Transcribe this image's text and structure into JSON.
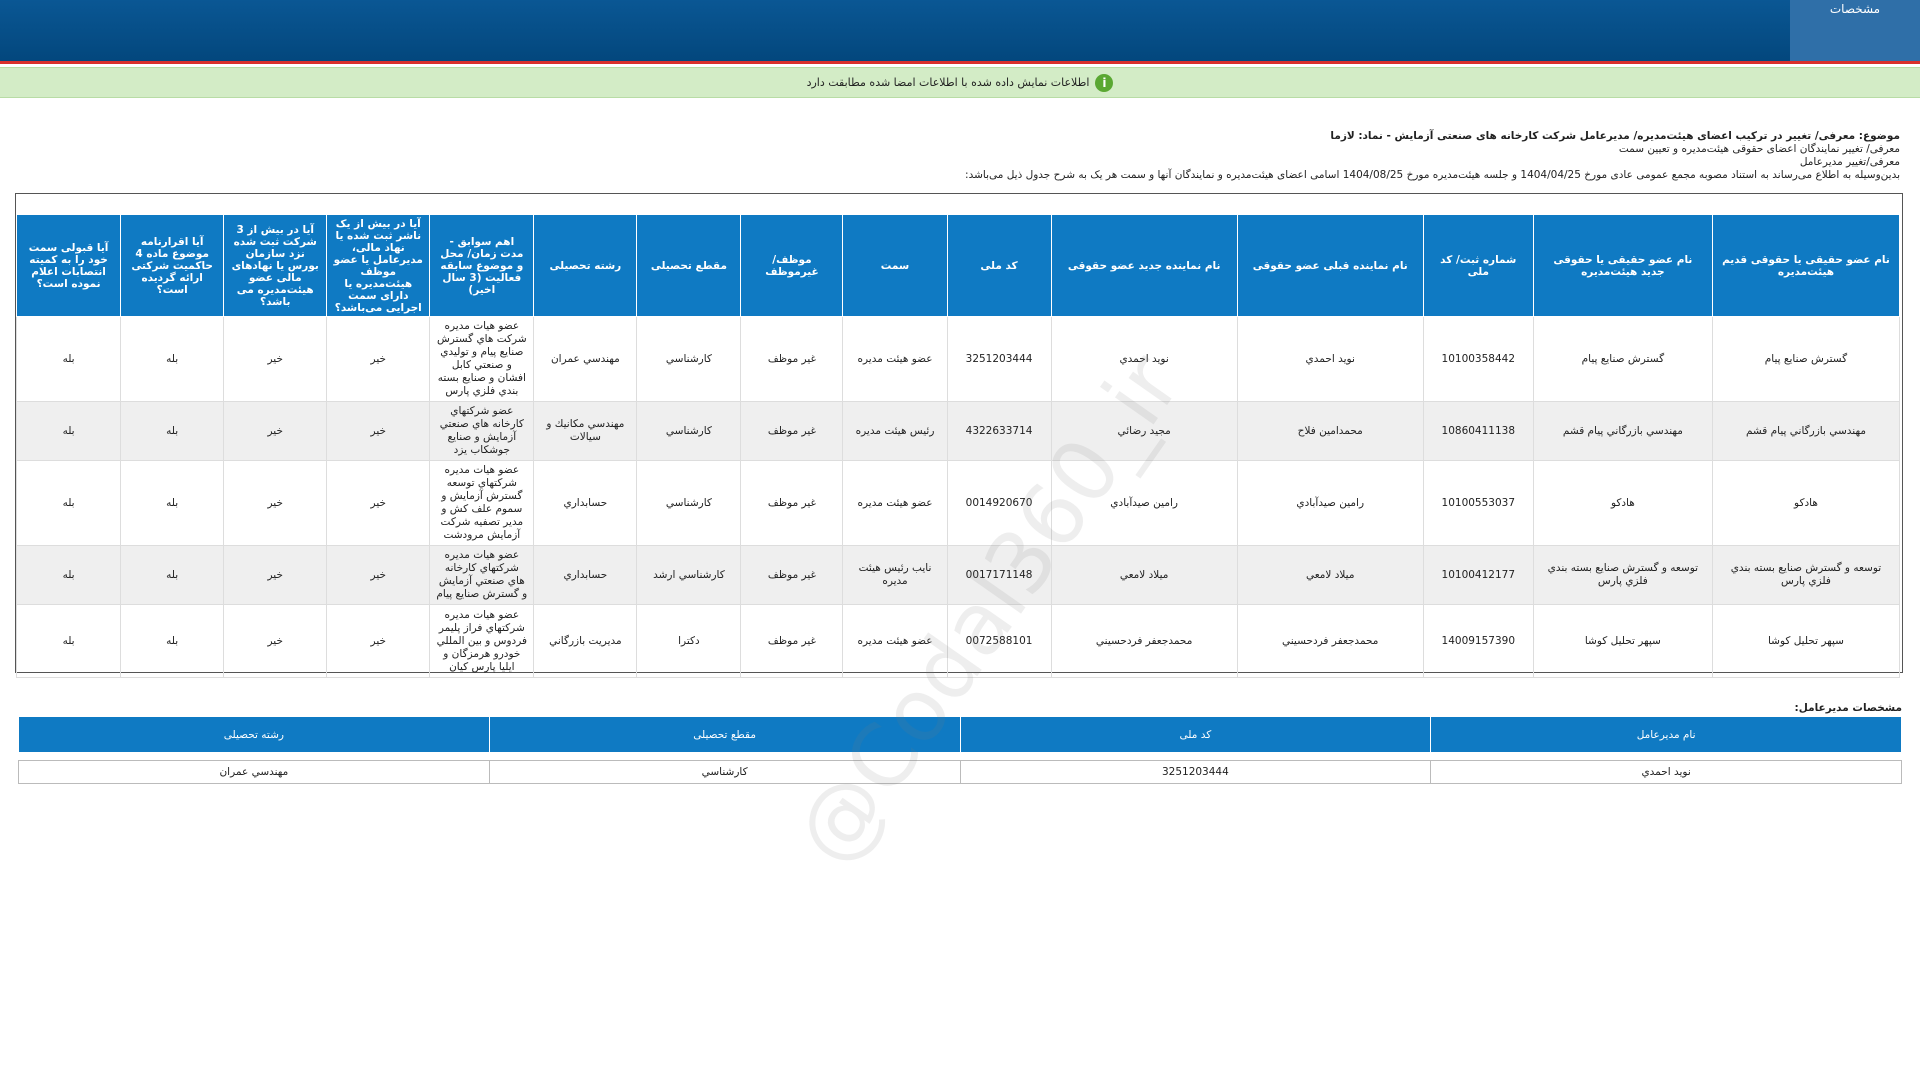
{
  "header": {
    "tab": "مشخصات"
  },
  "notice": "اطلاعات نمایش داده شده با اطلاعات امضا شده مطابقت دارد",
  "subject": {
    "title": "موضوع: معرفی/ تغییر در ترکیب اعضای هیئت‌مدیره/ مدیرعامل شرکت کارخانه های صنعتی آزمایش - نماد: لازما",
    "lines": [
      "معرفی/ تغییر نمایندگان اعضای حقوقی هیئت‌مدیره و تعیین سمت",
      "معرفی/تغییر مدیرعامل"
    ],
    "statement": "بدین‌وسیله به اطلاع می‌رساند به استناد مصوبه مجمع عمومی عادی مورخ 1404/04/25 و جلسه هیئت‌مدیره مورخ 1404/08/25 اسامی اعضای هیئت‌مدیره و نمایندگان آنها و سمت هر یک به شرح جدول ذیل می‌باشد:"
  },
  "board_table": {
    "headers": [
      "نام عضو حقیقی یا حقوقی قدیم هیئت‌مدیره",
      "نام عضو حقیقی یا حقوقی جدید هیئت‌مدیره",
      "شماره ثبت/ کد ملی",
      "نام نماینده قبلی عضو حقوقی",
      "نام نماینده جدید عضو حقوقی",
      "کد ملی",
      "سمت",
      "موظف/ غیرموظف",
      "مقطع تحصیلی",
      "رشته تحصیلی",
      "اهم سوابق - مدت زمان/ محل و موضوع سابقه فعالیت (3 سال اخیر)",
      "آیا در بیش از یک ناشر ثبت شده یا نهاد مالی، مدیرعامل یا عضو موظف هیئت‌مدیره یا دارای سمت اجرایی می‌باشد؟",
      "آیا در بیش از 3 شرکت ثبت شده نزد سازمان بورس یا نهادهای مالی عضو هیئت‌مدیره می باشد؟",
      "آیا اقرارنامه موضوع ماده 4 حاکمیت شرکتی ارائه گردیده است؟",
      "آیا قبولی سمت خود را به کمیته انتصابات اعلام نموده است؟"
    ],
    "rows": [
      [
        "گسترش صنايع پيام",
        "گسترش صنايع پيام",
        "10100358442",
        "نويد احمدي",
        "نويد احمدي",
        "3251203444",
        "عضو هيئت مديره",
        "غير موظف",
        "كارشناسي",
        "مهندسي عمران",
        "عضو هيات مديره شركت هاي گسترش صنايع پيام و توليدي و صنعتي كابل افشان و صنايع بسته بندي فلزي پارس",
        "خير",
        "خير",
        "بله",
        "بله"
      ],
      [
        "مهندسي بازرگاني پيام قشم",
        "مهندسي بازرگاني پيام قشم",
        "10860411138",
        "محمدامين فلاح",
        "مجيد رضائي",
        "4322633714",
        "رئيس هيئت مديره",
        "غير موظف",
        "كارشناسي",
        "مهندسي مكانيك و سيالات",
        "عضو شركتهاي كارخانه هاي صنعتي آزمايش و صنايع جوشكاب يزد",
        "خير",
        "خير",
        "بله",
        "بله"
      ],
      [
        "هادكو",
        "هادكو",
        "10100553037",
        "رامين صيدآبادي",
        "رامين صيدآبادي",
        "0014920670",
        "عضو هيئت مديره",
        "غير موظف",
        "كارشناسي",
        "حسابداري",
        "عضو هيات مديره شركتهاي توسعه گسترش آزمايش و سموم علف كش و مدير تصفيه شركت آزمايش مرودشت",
        "خير",
        "خير",
        "بله",
        "بله"
      ],
      [
        "توسعه و گسترش صنايع بسته بندي فلزي پارس",
        "توسعه و گسترش صنايع بسته بندي فلزي پارس",
        "10100412177",
        "ميلاد لامعي",
        "ميلاد لامعي",
        "0017171148",
        "نايب رئيس هيئت مديره",
        "غير موظف",
        "كارشناسي ارشد",
        "حسابداري",
        "عضو هيات مديره شركتهاي كارخانه هاي صنعتي آزمايش و گسترش صنايع پيام",
        "خير",
        "خير",
        "بله",
        "بله"
      ],
      [
        "سپهر تحليل كوشا",
        "سپهر تحليل كوشا",
        "14009157390",
        "محمدجعفر فردحسيني",
        "محمدجعفر فردحسيني",
        "0072588101",
        "عضو هيئت مديره",
        "غير موظف",
        "دكترا",
        "مديريت بازرگاني",
        "عضو هيات مديره شركتهاي فراز پليمر فردوس و بين المللي خودرو هرمزگان و ايليا پارس كيان",
        "خير",
        "خير",
        "بله",
        "بله"
      ]
    ]
  },
  "manager": {
    "label": "مشخصات مدیرعامل:",
    "headers": [
      "نام مدیرعامل",
      "کد ملی",
      "مقطع تحصیلی",
      "رشته تحصیلی"
    ],
    "row": [
      "نويد احمدي",
      "3251203444",
      "كارشناسي",
      "مهندسي عمران"
    ]
  },
  "watermark": "@Codal360_ir"
}
